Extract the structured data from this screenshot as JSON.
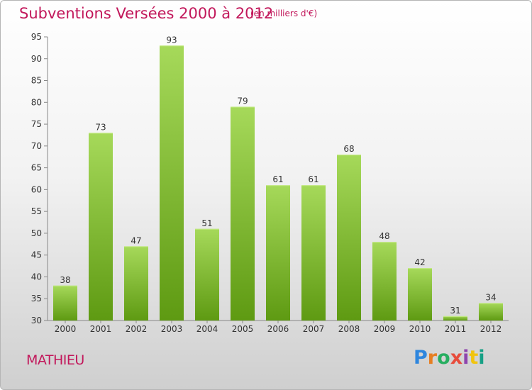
{
  "chart_data": {
    "type": "bar",
    "title": "Subventions Versées 2000 à 2012",
    "subtitle": "(en milliers d'€)",
    "categories": [
      "2000",
      "2001",
      "2002",
      "2003",
      "2004",
      "2005",
      "2006",
      "2007",
      "2008",
      "2009",
      "2010",
      "2011",
      "2012"
    ],
    "values": [
      38,
      73,
      47,
      93,
      51,
      79,
      61,
      61,
      68,
      48,
      42,
      31,
      34
    ],
    "ylim": [
      30,
      95
    ],
    "yticks": [
      30,
      35,
      40,
      45,
      50,
      55,
      60,
      65,
      70,
      75,
      80,
      85,
      90,
      95
    ],
    "grid": false,
    "colors": {
      "bar_top": "#9ed24f",
      "bar_bottom": "#5e9a12",
      "text": "#c2185b"
    }
  },
  "footer": {
    "commune": "MATHIEU",
    "logo": {
      "letters": [
        "P",
        "r",
        "o",
        "x",
        "i",
        "t",
        "i"
      ],
      "colors": [
        "#2e86de",
        "#e67e22",
        "#27ae60",
        "#e74c3c",
        "#8e44ad",
        "#f1c40f",
        "#16a085"
      ]
    }
  }
}
